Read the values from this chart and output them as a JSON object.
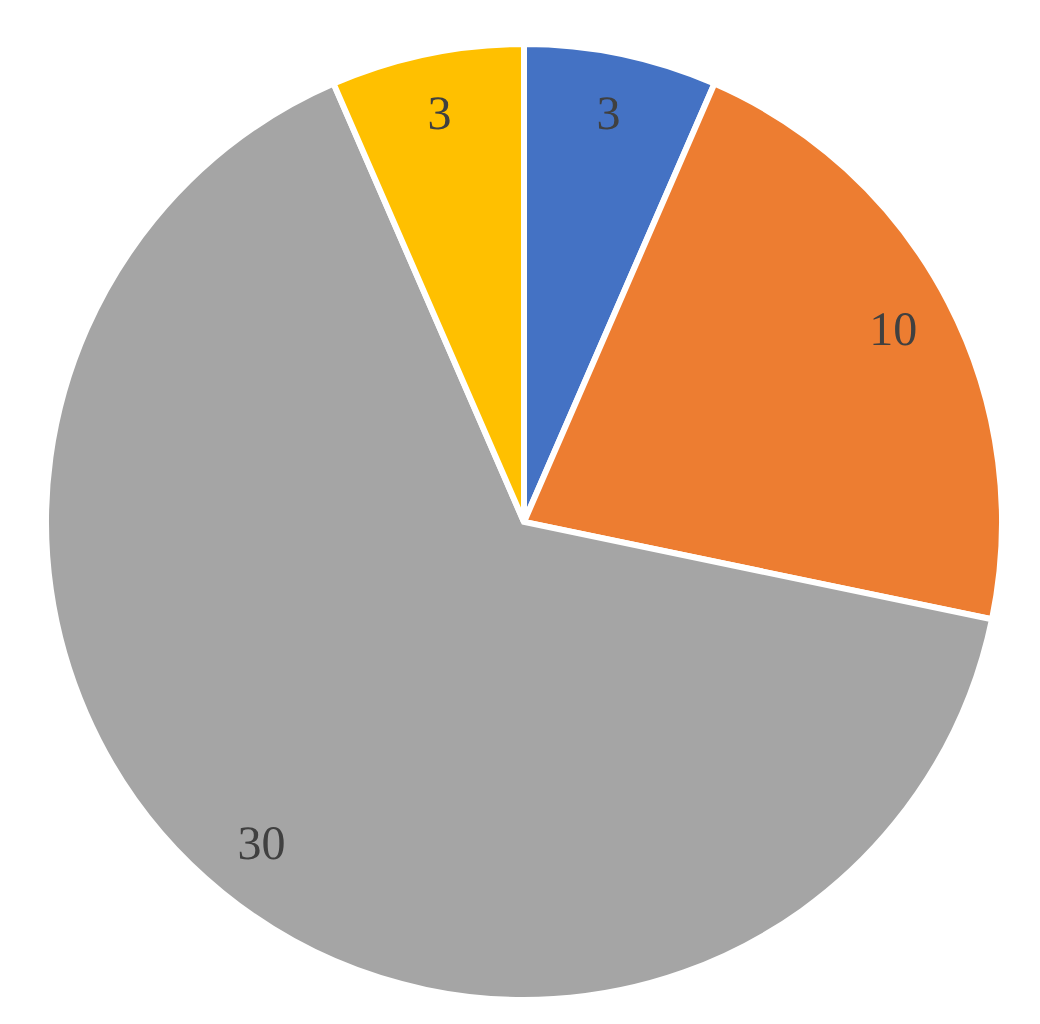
{
  "chart_data": {
    "type": "pie",
    "categories": [
      null,
      null,
      null,
      null
    ],
    "values": [
      3,
      10,
      30,
      3
    ],
    "colors": [
      "#4472c4",
      "#ed7d31",
      "#a5a5a5",
      "#ffc000"
    ],
    "data_labels": true
  }
}
